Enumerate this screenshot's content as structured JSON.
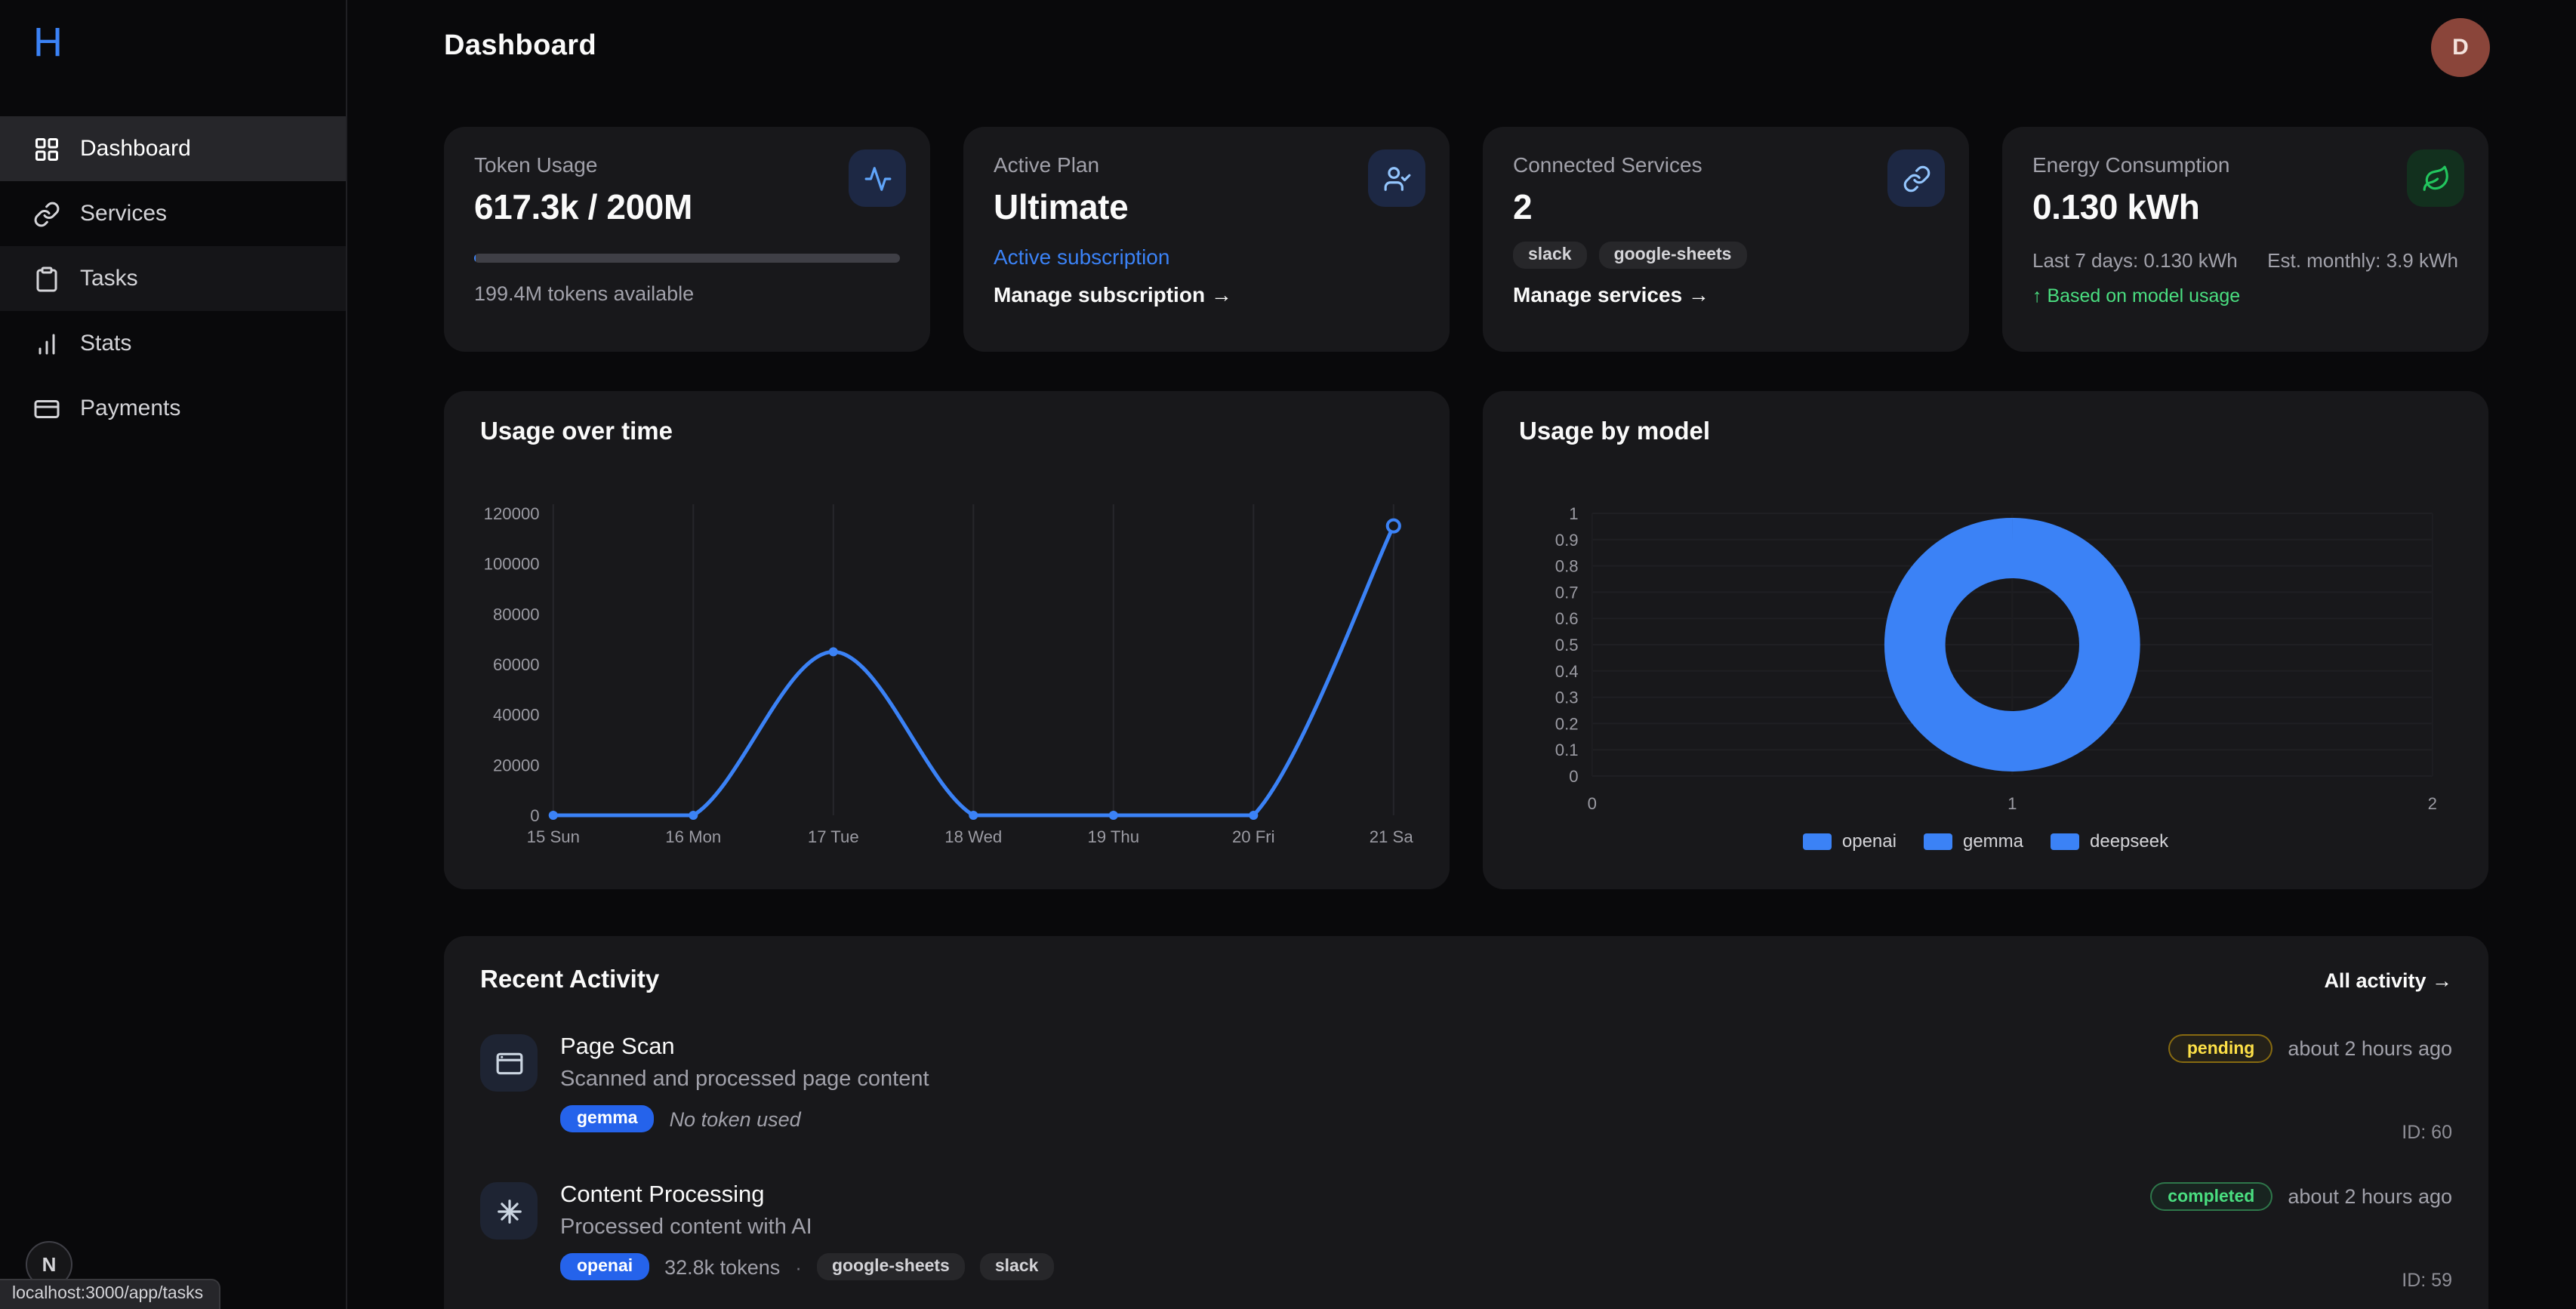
{
  "colors": {
    "accent_blue": "#3b82f6",
    "success_green": "#4ade80",
    "pending_yellow": "#facc15",
    "energy_green": "#22c55e"
  },
  "sidebar": {
    "logo": "H",
    "items": [
      {
        "label": "Dashboard",
        "icon": "grid-icon",
        "active": true
      },
      {
        "label": "Services",
        "icon": "link-icon",
        "active": false
      },
      {
        "label": "Tasks",
        "icon": "clipboard-icon",
        "active": false
      },
      {
        "label": "Stats",
        "icon": "bar-chart-icon",
        "active": false
      },
      {
        "label": "Payments",
        "icon": "credit-card-icon",
        "active": false
      }
    ]
  },
  "header": {
    "title": "Dashboard",
    "avatar_initial": "D"
  },
  "stat_cards": [
    {
      "label": "Token Usage",
      "value": "617.3k / 200M",
      "subtext": "199.4M tokens available",
      "icon": "activity-icon",
      "progress_percent": 0.31
    },
    {
      "label": "Active Plan",
      "value": "Ultimate",
      "link": "Active subscription",
      "action": "Manage subscription →",
      "icon": "user-check-icon"
    },
    {
      "label": "Connected Services",
      "value": "2",
      "badges": [
        "slack",
        "google-sheets"
      ],
      "action": "Manage services →",
      "icon": "link-icon"
    },
    {
      "label": "Energy Consumption",
      "value": "0.130 kWh",
      "last7_label": "Last 7 days: 0.130 kWh",
      "monthly_label": "Est. monthly: 3.9 kWh",
      "note": "↑ Based on model usage",
      "icon": "leaf-icon"
    }
  ],
  "chart_data": [
    {
      "type": "line",
      "title": "Usage over time",
      "x": [
        "15 Sun",
        "16 Mon",
        "17 Tue",
        "18 Wed",
        "19 Thu",
        "20 Fri",
        "21 Sat"
      ],
      "values": [
        0,
        0,
        65000,
        0,
        0,
        0,
        115000
      ],
      "ylim": [
        0,
        120000
      ],
      "yticks": [
        0,
        20000,
        40000,
        60000,
        80000,
        100000,
        120000
      ],
      "line_color": "#3b82f6",
      "grid": "vertical",
      "legend_position": "none"
    },
    {
      "type": "donut",
      "title": "Usage by model",
      "legend": [
        "openai",
        "gemma",
        "deepseek"
      ],
      "series": [
        {
          "name": "openai",
          "value": 32800
        },
        {
          "name": "gemma",
          "value": 0
        },
        {
          "name": "deepseek",
          "value": 0
        }
      ],
      "colors": [
        "#3b82f6",
        "#3b82f6",
        "#3b82f6"
      ],
      "yticks": [
        0,
        0.1,
        0.2,
        0.3,
        0.4,
        0.5,
        0.6,
        0.7,
        0.8,
        0.9,
        1
      ],
      "xticks": [
        0,
        1,
        2
      ],
      "legend_position": "bottom"
    }
  ],
  "recent_activity": {
    "title": "Recent Activity",
    "link": "All activity →",
    "items": [
      {
        "title": "Page Scan",
        "description": "Scanned and processed page content",
        "model_badge": "gemma",
        "tokens": "No token used",
        "status": "pending",
        "time": "about 2 hours ago",
        "id": "ID: 60"
      },
      {
        "title": "Content Processing",
        "description": "Processed content with AI",
        "model_badge": "openai",
        "tokens": "32.8k tokens",
        "separator": "·",
        "service_badges": [
          "google-sheets",
          "slack"
        ],
        "status": "completed",
        "time": "about 2 hours ago",
        "id": "ID: 59"
      }
    ]
  },
  "dev": {
    "badge": "N",
    "status_bar": "localhost:3000/app/tasks"
  }
}
